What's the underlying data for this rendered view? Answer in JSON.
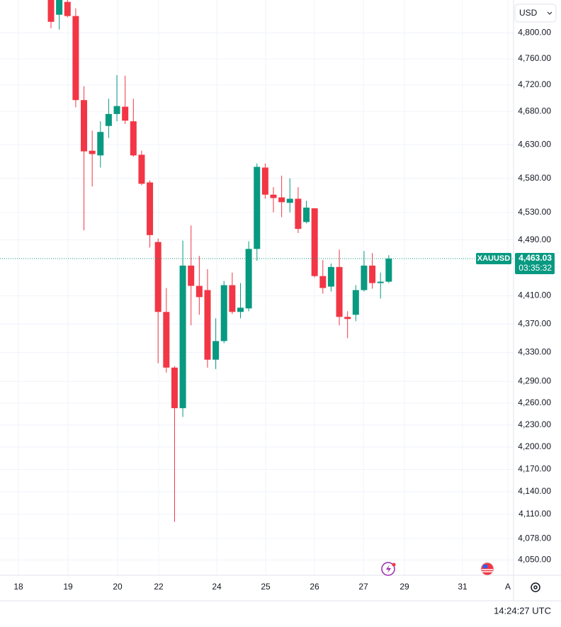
{
  "chart_data": {
    "type": "candlestick",
    "symbol": "XAUUSD",
    "currency": "USD",
    "last_price": {
      "value": 4463.03,
      "label": "4,463.03"
    },
    "countdown": "03:35:32",
    "clock": "14:24:27 UTC",
    "x_labels": [
      "18",
      "19",
      "20",
      "22",
      "24",
      "25",
      "26",
      "27",
      "29",
      "31",
      "A"
    ],
    "open": [
      4860,
      4828,
      4848,
      4826,
      4697,
      4621,
      4614,
      4658,
      4676,
      4687,
      4665,
      4615,
      4574,
      4487,
      4387,
      4309,
      4253,
      4453,
      4424,
      4418,
      4320,
      4346,
      4425,
      4387,
      4392,
      4477,
      4596,
      4556,
      4552,
      4544,
      4550,
      4516,
      4536,
      4438,
      4423,
      4451,
      4380,
      4383,
      4418,
      4453,
      4428,
      4430
    ],
    "high": [
      4865,
      4860,
      4852,
      4838,
      4718,
      4651,
      4665,
      4699,
      4735,
      4734,
      4699,
      4621,
      4577,
      4492,
      4421,
      4311,
      4489,
      4511,
      4467,
      4448,
      4378,
      4431,
      4443,
      4428,
      4488,
      4602,
      4602,
      4567,
      4584,
      4580,
      4567,
      4547,
      4536,
      4461,
      4456,
      4476,
      4388,
      4425,
      4474,
      4471,
      4443,
      4468
    ],
    "low": [
      4807,
      4805,
      4824,
      4686,
      4504,
      4568,
      4596,
      4640,
      4665,
      4661,
      4612,
      4570,
      4479,
      4315,
      4302,
      4100,
      4241,
      4368,
      4383,
      4309,
      4307,
      4343,
      4384,
      4378,
      4388,
      4460,
      4550,
      4530,
      4523,
      4530,
      4500,
      4514,
      4436,
      4413,
      4416,
      4368,
      4350,
      4374,
      4416,
      4420,
      4406,
      4428
    ],
    "close": [
      4817,
      4855,
      4826,
      4697,
      4620,
      4616,
      4649,
      4676,
      4688,
      4666,
      4614,
      4572,
      4497,
      4387,
      4309,
      4253,
      4453,
      4424,
      4408,
      4320,
      4346,
      4425,
      4387,
      4393,
      4477,
      4597,
      4556,
      4551,
      4545,
      4550,
      4506,
      4537,
      4438,
      4421,
      4451,
      4380,
      4377,
      4418,
      4453,
      4428,
      4430,
      4463
    ],
    "up_color": "#089981",
    "down_color": "#f23645",
    "ylim": [
      4030,
      4851
    ],
    "log_scale": true,
    "grid": true,
    "yticks": [
      {
        "value": 4800,
        "label": "4,800.00"
      },
      {
        "value": 4760,
        "label": "4,760.00"
      },
      {
        "value": 4720,
        "label": "4,720.00"
      },
      {
        "value": 4680,
        "label": "4,680.00"
      },
      {
        "value": 4630,
        "label": "4,630.00"
      },
      {
        "value": 4580,
        "label": "4,580.00"
      },
      {
        "value": 4530,
        "label": "4,530.00"
      },
      {
        "value": 4490,
        "label": "4,490.00"
      },
      {
        "value": 4410,
        "label": "4,410.00"
      },
      {
        "value": 4370,
        "label": "4,370.00"
      },
      {
        "value": 4330,
        "label": "4,330.00"
      },
      {
        "value": 4290,
        "label": "4,290.00"
      },
      {
        "value": 4260,
        "label": "4,260.00"
      },
      {
        "value": 4230,
        "label": "4,230.00"
      },
      {
        "value": 4200,
        "label": "4,200.00"
      },
      {
        "value": 4170,
        "label": "4,170.00"
      },
      {
        "value": 4140,
        "label": "4,140.00"
      },
      {
        "value": 4110,
        "label": "4,110.00"
      },
      {
        "value": 4078,
        "label": "4,078.00"
      },
      {
        "value": 4050,
        "label": "4,050.00"
      }
    ]
  }
}
